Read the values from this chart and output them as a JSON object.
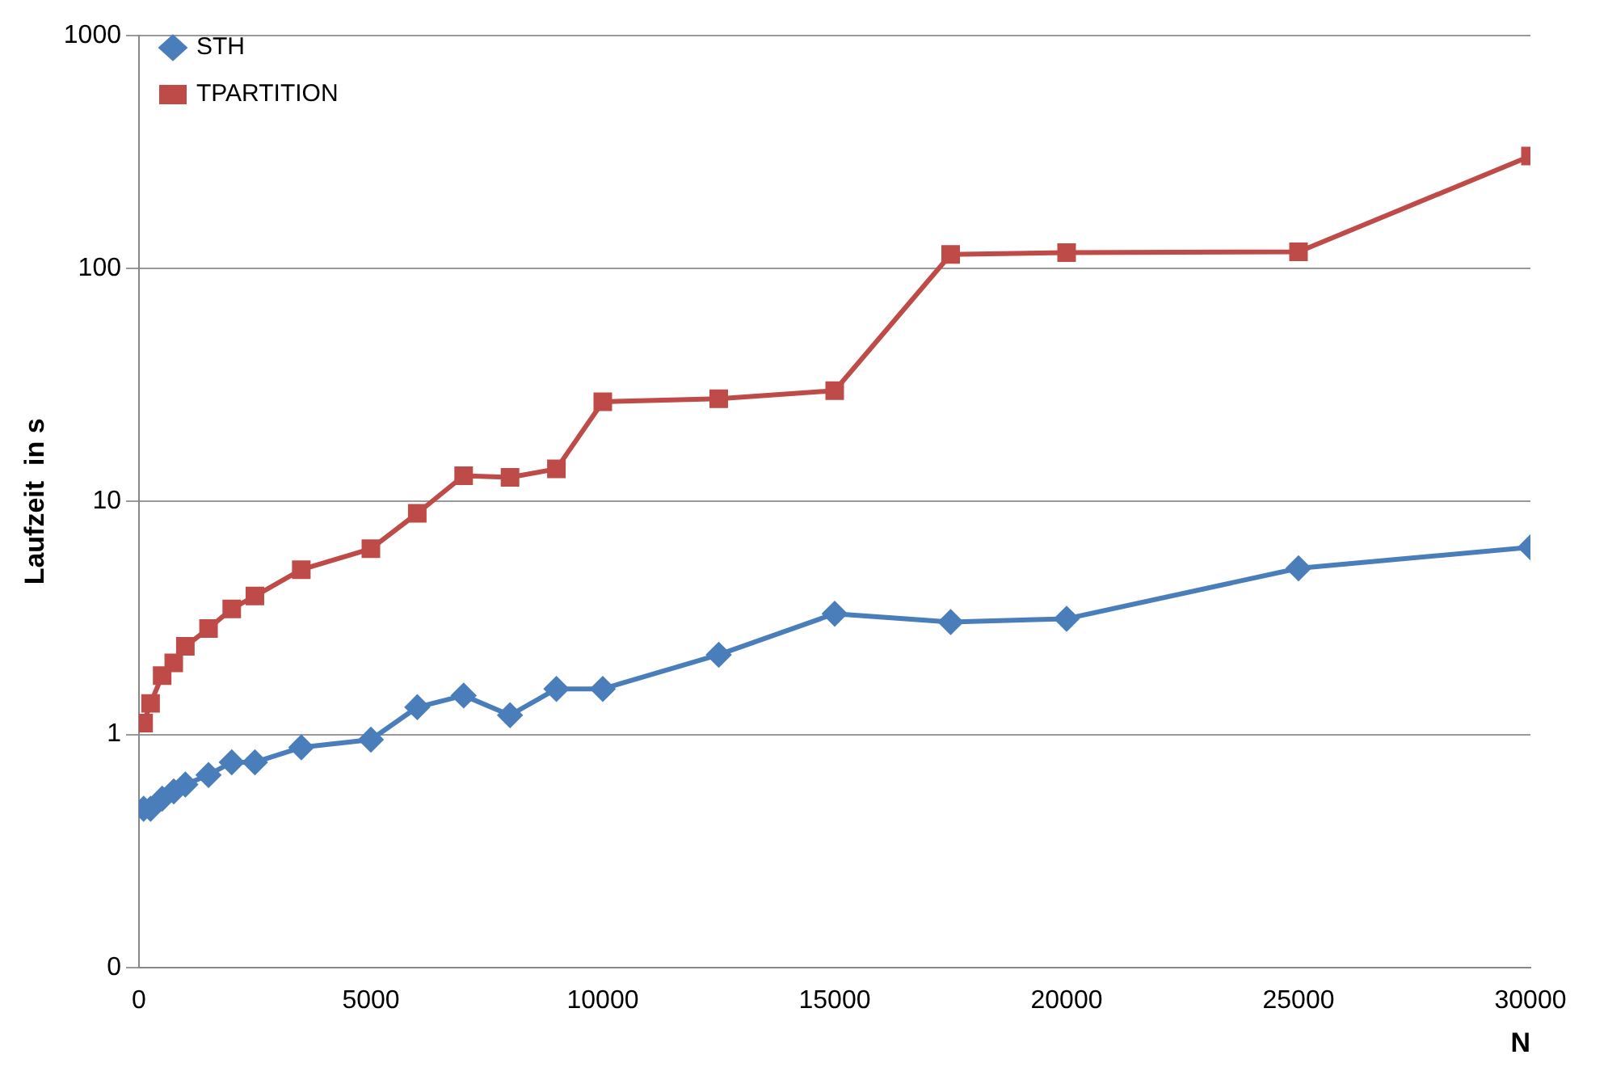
{
  "chart_data": {
    "type": "line",
    "xlabel": "N",
    "ylabel": "Laufzeit  in s",
    "x": [
      100,
      250,
      500,
      750,
      1000,
      1500,
      2000,
      2500,
      3500,
      5000,
      6000,
      7000,
      8000,
      9000,
      10000,
      12500,
      15000,
      17500,
      20000,
      25000,
      30000
    ],
    "series": [
      {
        "name": "STH",
        "color": "#4a7ebb",
        "marker": "diamond",
        "values": [
          0.48,
          0.48,
          0.53,
          0.57,
          0.61,
          0.67,
          0.76,
          0.76,
          0.88,
          0.95,
          1.31,
          1.47,
          1.21,
          1.57,
          1.57,
          2.2,
          3.3,
          3.04,
          3.14,
          5.17,
          6.36
        ]
      },
      {
        "name": "TPARTITION",
        "color": "#be4b48",
        "marker": "square",
        "values": [
          1.12,
          1.36,
          1.79,
          2.03,
          2.39,
          2.85,
          3.46,
          3.93,
          5.1,
          6.27,
          8.9,
          12.9,
          12.7,
          13.8,
          26.8,
          27.6,
          29.9,
          115,
          117,
          118,
          304
        ]
      }
    ],
    "log": "y",
    "xlim": [
      0,
      30000
    ],
    "xticks": [
      0,
      5000,
      10000,
      15000,
      20000,
      25000,
      30000
    ],
    "ylim": [
      0.1,
      1000
    ],
    "yticks": [
      {
        "value": 0.1,
        "label": "0"
      },
      1,
      10,
      100,
      1000
    ],
    "grid": "y",
    "legend": "top left",
    "line_style": "solid"
  }
}
